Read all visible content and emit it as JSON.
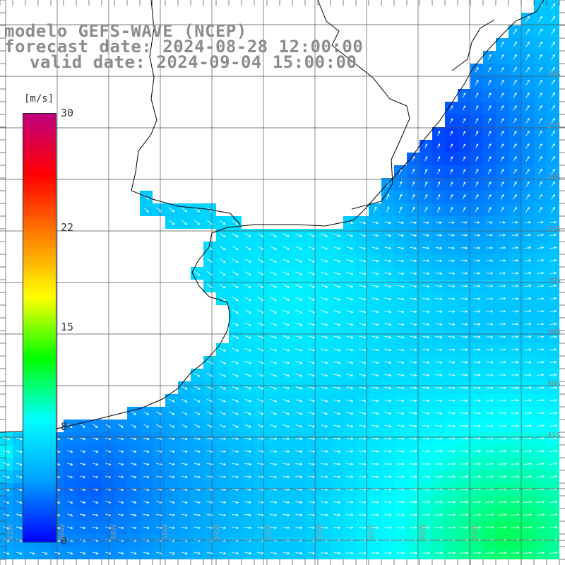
{
  "title": {
    "line1": "modelo GEFS-WAVE (NCEP)",
    "line2": "forecast date: 2024-08-28 12:00:00",
    "line3": "valid date: 2024-09-04 15:00:00"
  },
  "colorbar": {
    "unit": "[m/s]",
    "ticks": [
      "0",
      "8",
      "15",
      "22",
      "30"
    ],
    "tick_values": [
      0,
      8,
      15,
      22,
      30
    ],
    "min": 0,
    "max": 30,
    "colors": [
      "#0000ff",
      "#00a0ff",
      "#00ffff",
      "#00ff00",
      "#ffff00",
      "#ff8000",
      "#ff0000",
      "#c00080"
    ]
  },
  "lat_labels": [
    "24S",
    "27S",
    "30S",
    "33S",
    "35S",
    "38S",
    "40S",
    "41S"
  ],
  "lon_labels": [
    "62W",
    "60W",
    "58W",
    "56W",
    "54W",
    "52W",
    "50W",
    "48W",
    "46W",
    "44W"
  ],
  "colors": {
    "land": "#ffffff",
    "grid": "#555555",
    "coast": "#000000",
    "arrows": "#ffffff",
    "title": "#8c8c8c"
  }
}
